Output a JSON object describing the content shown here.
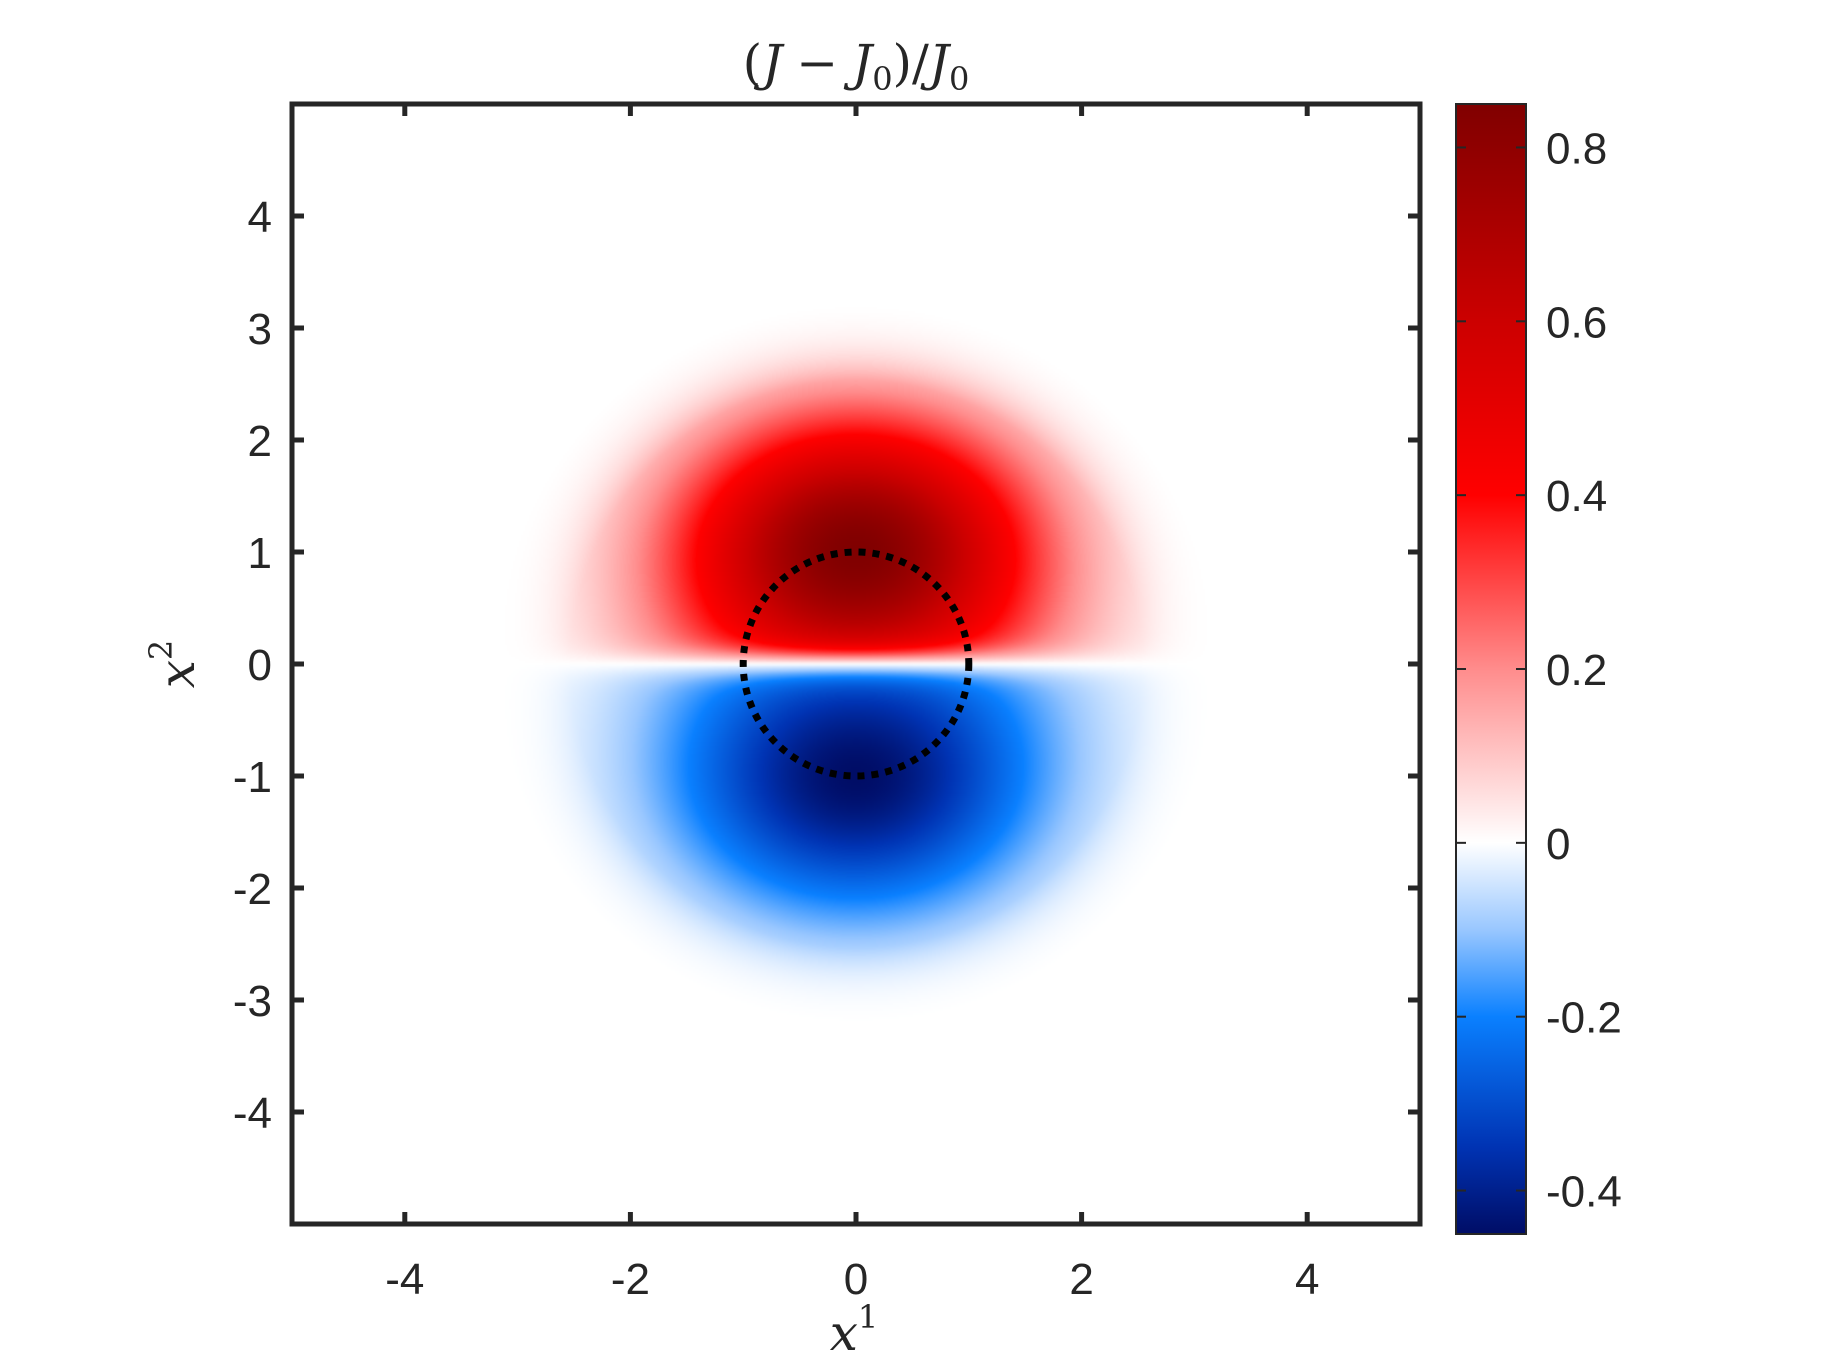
{
  "chart_data": {
    "type": "heatmap",
    "title": "(J − J0)/J0",
    "title_parts": {
      "open": "(",
      "J": "J",
      "minus": "−",
      "J0a": "J",
      "sub0a": "0",
      "close_div": ")/",
      "J0b": "J",
      "sub0b": "0"
    },
    "xlabel": "x1",
    "xlabel_parts": {
      "base": "x",
      "sup": "1"
    },
    "ylabel": "x2",
    "ylabel_parts": {
      "base": "x",
      "sup": "2"
    },
    "xlim": [
      -5,
      5
    ],
    "ylim": [
      -5,
      5
    ],
    "xticks": [
      -4,
      -2,
      0,
      2,
      4
    ],
    "xtick_labels": [
      "-4",
      "-2",
      "0",
      "2",
      "4"
    ],
    "yticks": [
      4,
      3,
      2,
      1,
      0,
      -1,
      -2,
      -3,
      -4
    ],
    "ytick_labels": [
      "4",
      "3",
      "2",
      "1",
      "0",
      "-1",
      "-2",
      "-3",
      "-4"
    ],
    "colorbar": {
      "range": [
        -0.45,
        0.85
      ],
      "ticks": [
        0.8,
        0.6,
        0.4,
        0.2,
        0,
        -0.2,
        -0.4
      ],
      "tick_labels": [
        "0.8",
        "0.6",
        "0.4",
        "0.2",
        "0",
        "-0.2",
        "-0.4"
      ],
      "colors": [
        {
          "value": -0.45,
          "color": "#000d66"
        },
        {
          "value": -0.35,
          "color": "#0033b3"
        },
        {
          "value": -0.2,
          "color": "#0a80ff"
        },
        {
          "value": -0.1,
          "color": "#99c7ff"
        },
        {
          "value": 0.0,
          "color": "#ffffff"
        },
        {
          "value": 0.2,
          "color": "#ff8c8c"
        },
        {
          "value": 0.4,
          "color": "#ff0000"
        },
        {
          "value": 0.6,
          "color": "#cc0000"
        },
        {
          "value": 0.85,
          "color": "#800000"
        }
      ]
    },
    "field": {
      "description_free": true,
      "positive_peak": {
        "x": 0,
        "y": 1.0,
        "value": 0.85
      },
      "negative_peak": {
        "x": 0,
        "y": -1.0,
        "value": -0.45
      },
      "extent_radius": 3.2
    },
    "overlay": {
      "type": "dotted-circle",
      "center": [
        0,
        0
      ],
      "radius": 1.0,
      "color": "#000000"
    },
    "grid": false
  }
}
